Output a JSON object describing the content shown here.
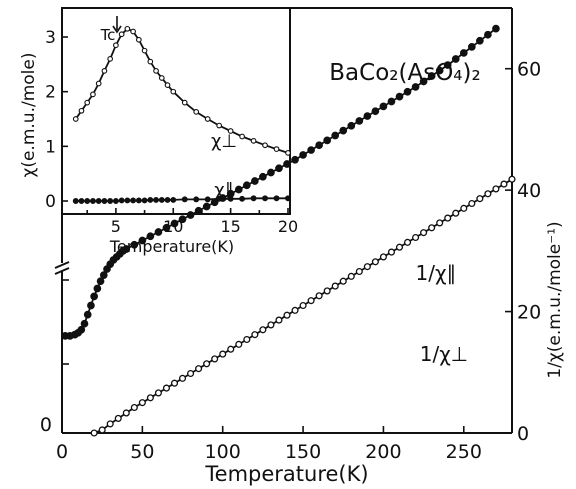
{
  "chart_data": [
    {
      "type": "line",
      "xlabel": "Temperature(K)",
      "ylabel": "1/χ(e.m.u./mole⁻¹)",
      "xlim": [
        0,
        280
      ],
      "ylim": [
        0,
        70
      ],
      "x_ticks": [
        "0",
        "50",
        "100",
        "150",
        "200",
        "250"
      ],
      "y_ticks_left": [
        "0"
      ],
      "y_ticks_right": [
        "0",
        "20",
        "40",
        "60"
      ],
      "series": [
        {
          "name": "1/χ∥",
          "marker": "filled",
          "x": [
            2,
            5,
            8,
            10,
            12,
            14,
            16,
            18,
            20,
            22,
            24,
            26,
            28,
            30,
            32,
            34,
            36,
            38,
            40,
            45,
            50,
            55,
            60,
            65,
            70,
            75,
            80,
            85,
            90,
            95,
            100,
            105,
            110,
            115,
            120,
            125,
            130,
            135,
            140,
            145,
            150,
            155,
            160,
            165,
            170,
            175,
            180,
            185,
            190,
            195,
            200,
            205,
            210,
            215,
            220,
            225,
            230,
            235,
            240,
            245,
            250,
            255,
            260,
            265,
            270
          ],
          "y": [
            16,
            16,
            16.2,
            16.5,
            17,
            18,
            19.5,
            21,
            22.5,
            23.8,
            25,
            26,
            27,
            27.8,
            28.5,
            29,
            29.5,
            30,
            30.3,
            31,
            31.7,
            32.4,
            33.1,
            33.8,
            34.5,
            35.2,
            35.9,
            36.6,
            37.3,
            38,
            38.7,
            39.4,
            40.1,
            40.8,
            41.5,
            42.2,
            42.9,
            43.6,
            44.3,
            45,
            45.8,
            46.6,
            47.4,
            48.2,
            49,
            49.8,
            50.6,
            51.4,
            52.2,
            53,
            53.8,
            54.6,
            55.4,
            56.2,
            57,
            57.9,
            58.8,
            59.7,
            60.6,
            61.6,
            62.6,
            63.6,
            64.6,
            65.6,
            66.6
          ]
        },
        {
          "name": "1/χ⊥",
          "marker": "open",
          "x": [
            20,
            25,
            30,
            35,
            40,
            45,
            50,
            55,
            60,
            65,
            70,
            75,
            80,
            85,
            90,
            95,
            100,
            105,
            110,
            115,
            120,
            125,
            130,
            135,
            140,
            145,
            150,
            155,
            160,
            165,
            170,
            175,
            180,
            185,
            190,
            195,
            200,
            205,
            210,
            215,
            220,
            225,
            230,
            235,
            240,
            245,
            250,
            255,
            260,
            265,
            270,
            275,
            280
          ],
          "y": [
            0,
            0.5,
            1.5,
            2.4,
            3.3,
            4.2,
            5,
            5.8,
            6.6,
            7.4,
            8.2,
            9,
            9.8,
            10.6,
            11.4,
            12.2,
            13,
            13.8,
            14.6,
            15.4,
            16.2,
            17,
            17.8,
            18.6,
            19.4,
            20.2,
            21,
            21.8,
            22.6,
            23.4,
            24.2,
            25,
            25.8,
            26.6,
            27.4,
            28.2,
            29,
            29.8,
            30.6,
            31.4,
            32.2,
            33,
            33.8,
            34.6,
            35.4,
            36.2,
            37,
            37.8,
            38.6,
            39.4,
            40.2,
            41,
            41.8
          ]
        }
      ],
      "annotations": [
        "1/χ∥",
        "1/χ⊥"
      ]
    },
    {
      "type": "line",
      "title": "BaCo₂(AsO₄)₂",
      "xlabel": "Temperature(K)",
      "ylabel": "χ(e.m.u./mole)",
      "xlim": [
        1,
        20
      ],
      "ylim": [
        -0.2,
        3.6
      ],
      "x_ticks": [
        "5",
        "10",
        "15",
        "20"
      ],
      "y_ticks": [
        "0",
        "1",
        "2",
        "3"
      ],
      "annotations": [
        "Tc",
        "χ⊥",
        "χ∥"
      ],
      "series": [
        {
          "name": "χ⊥",
          "marker": "open",
          "x": [
            1.5,
            2,
            2.5,
            3,
            3.5,
            4,
            4.5,
            5,
            5.5,
            6,
            6.5,
            7,
            7.5,
            8,
            8.5,
            9,
            9.5,
            10,
            11,
            12,
            13,
            14,
            15,
            16,
            17,
            18,
            19,
            20
          ],
          "y": [
            1.5,
            1.65,
            1.8,
            1.95,
            2.15,
            2.38,
            2.6,
            2.85,
            3.05,
            3.15,
            3.1,
            2.95,
            2.75,
            2.55,
            2.38,
            2.25,
            2.12,
            2.0,
            1.8,
            1.63,
            1.5,
            1.38,
            1.28,
            1.18,
            1.1,
            1.02,
            0.95,
            0.88
          ]
        },
        {
          "name": "χ∥",
          "marker": "filled",
          "x": [
            1.5,
            2,
            2.5,
            3,
            3.5,
            4,
            4.5,
            5,
            5.5,
            6,
            6.5,
            7,
            7.5,
            8,
            8.5,
            9,
            9.5,
            10,
            11,
            12,
            13,
            14,
            15,
            16,
            17,
            18,
            19,
            20
          ],
          "y": [
            0,
            0,
            0,
            0,
            0,
            0,
            0,
            0,
            0.01,
            0.01,
            0.01,
            0.01,
            0.01,
            0.02,
            0.02,
            0.02,
            0.02,
            0.02,
            0.03,
            0.03,
            0.03,
            0.04,
            0.04,
            0.04,
            0.05,
            0.05,
            0.05,
            0.05
          ]
        }
      ]
    }
  ]
}
